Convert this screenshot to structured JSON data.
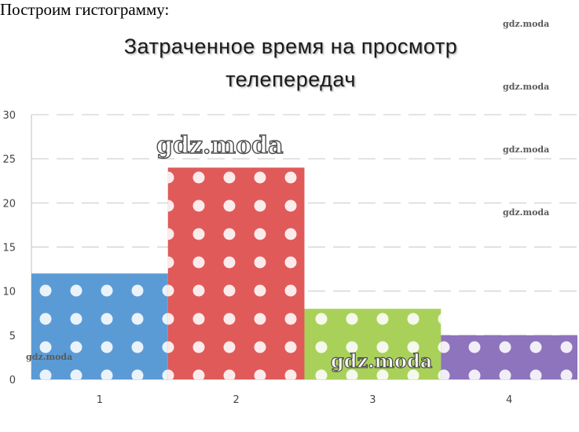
{
  "intro_text": "Построим гистограмму:",
  "watermarks": {
    "small": [
      "gdz.moda",
      "gdz.moda",
      "gdz.moda",
      "gdz.moda",
      "gdz.moda"
    ],
    "big": "gdz.moda",
    "mid": "gdz.moda"
  },
  "chart_data": {
    "type": "bar",
    "title_lines": [
      "Затраченное время на просмотр",
      "телепередач"
    ],
    "categories": [
      "1",
      "2",
      "3",
      "4"
    ],
    "values": [
      12,
      24,
      8,
      5
    ],
    "colors": [
      "#5b9bd5",
      "#e05a5a",
      "#a9d15a",
      "#8e73bd"
    ],
    "ylim": [
      0,
      30
    ],
    "yticks": [
      "0",
      "5",
      "10",
      "15",
      "20",
      "25",
      "30"
    ],
    "xlabel": "",
    "ylabel": "",
    "grid": true,
    "legend": "none"
  }
}
